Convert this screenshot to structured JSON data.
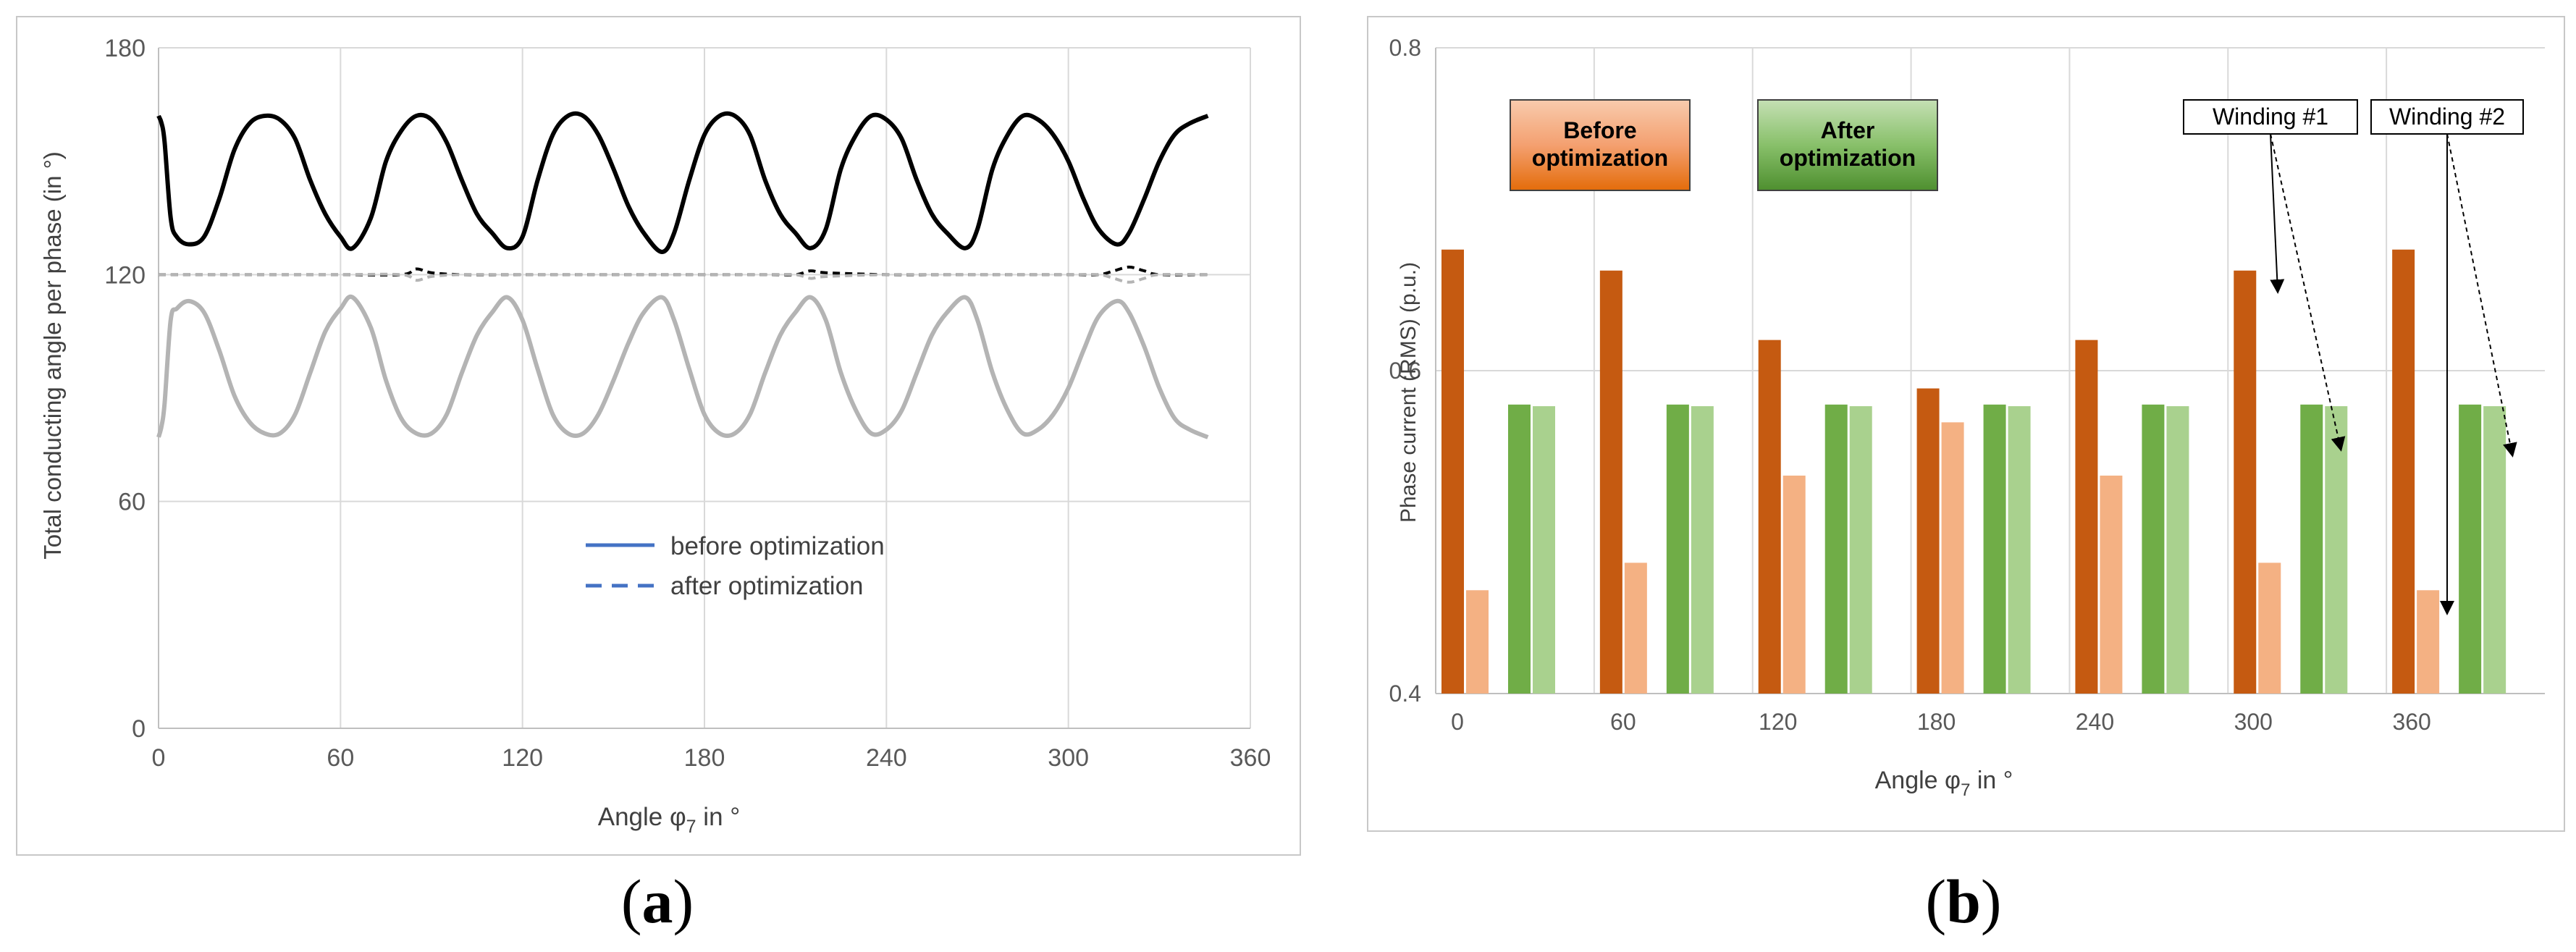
{
  "chart_data": [
    {
      "id": "a",
      "type": "line",
      "ylabel": "Total conducting angle per phase (in °)",
      "xlabel_main": "Angle φ",
      "xlabel_sub": "7",
      "xlabel_unit": " in °",
      "xlim": [
        0,
        360
      ],
      "ylim": [
        0,
        180
      ],
      "x_ticks": [
        "0",
        "60",
        "120",
        "180",
        "240",
        "300",
        "360"
      ],
      "y_ticks": [
        "0",
        "60",
        "120",
        "180"
      ],
      "grid": true,
      "legend": [
        {
          "label": "before optimization",
          "style": "solid",
          "color": "#4472c4"
        },
        {
          "label": "after optimization",
          "style": "dashed",
          "color": "#4472c4"
        }
      ],
      "series": [
        {
          "name": "before optimization (winding #1)",
          "color": "#000000",
          "style": "solid",
          "x": [
            0,
            1,
            2,
            4,
            6,
            10,
            15,
            20,
            25,
            30,
            35,
            40,
            45,
            50,
            55,
            60,
            64,
            70,
            75,
            80,
            85,
            90,
            95,
            100,
            105,
            110,
            115,
            120,
            125,
            130,
            135,
            140,
            145,
            150,
            155,
            160,
            166,
            170,
            175,
            180,
            185,
            190,
            195,
            200,
            205,
            210,
            215,
            220,
            225,
            230,
            235,
            240,
            245,
            250,
            255,
            260,
            266,
            270,
            275,
            280,
            285,
            290,
            295,
            300,
            305,
            310,
            316,
            320,
            325,
            330,
            335,
            340,
            346
          ],
          "y": [
            162,
            160,
            155,
            135,
            130,
            128,
            130,
            140,
            153,
            160,
            162,
            161,
            156,
            145,
            136,
            130,
            127,
            135,
            150,
            158,
            162,
            161,
            155,
            145,
            136,
            131,
            127,
            130,
            145,
            157,
            162,
            162,
            157,
            148,
            138,
            131,
            126,
            131,
            145,
            157,
            162,
            162,
            157,
            145,
            136,
            131,
            127,
            132,
            148,
            157,
            162,
            161,
            156,
            145,
            136,
            131,
            127,
            132,
            148,
            157,
            162,
            161,
            157,
            150,
            140,
            132,
            128,
            131,
            140,
            150,
            157,
            160,
            162
          ]
        },
        {
          "name": "after optimization (winding #1)",
          "color": "#000000",
          "style": "dashed",
          "x": [
            0,
            20,
            40,
            60,
            80,
            85,
            90,
            100,
            120,
            140,
            160,
            180,
            200,
            210,
            215,
            220,
            240,
            260,
            280,
            300,
            310,
            315,
            320,
            325,
            330,
            346
          ],
          "y": [
            120,
            120,
            120,
            120,
            120,
            121.5,
            120.5,
            120,
            120,
            120,
            120,
            120,
            120,
            120,
            121,
            120.5,
            120,
            120,
            120,
            120,
            120,
            121,
            122,
            121,
            120,
            120
          ]
        },
        {
          "name": "after optimization (winding #2)",
          "color": "#b4b4b4",
          "style": "dashed",
          "x": [
            0,
            20,
            40,
            60,
            80,
            85,
            90,
            100,
            120,
            140,
            160,
            180,
            200,
            210,
            215,
            220,
            240,
            260,
            280,
            300,
            310,
            315,
            320,
            325,
            330,
            346
          ],
          "y": [
            120,
            120,
            120,
            120,
            120,
            118.5,
            119.5,
            120,
            120,
            120,
            120,
            120,
            120,
            120,
            119,
            119.5,
            120,
            120,
            120,
            120,
            120,
            119,
            118,
            119,
            120,
            120
          ]
        },
        {
          "name": "before optimization (winding #2)",
          "color": "#b4b4b4",
          "style": "solid",
          "x": [
            0,
            1,
            2,
            4,
            6,
            10,
            15,
            20,
            25,
            30,
            35,
            40,
            45,
            50,
            55,
            60,
            64,
            70,
            75,
            80,
            85,
            90,
            95,
            100,
            105,
            110,
            115,
            120,
            125,
            130,
            135,
            140,
            145,
            150,
            155,
            160,
            166,
            170,
            175,
            180,
            185,
            190,
            195,
            200,
            205,
            210,
            215,
            220,
            225,
            230,
            235,
            240,
            245,
            250,
            255,
            260,
            266,
            270,
            275,
            280,
            285,
            290,
            295,
            300,
            305,
            310,
            316,
            320,
            325,
            330,
            335,
            340,
            346
          ],
          "y": [
            77,
            80,
            86,
            108,
            111,
            113,
            110,
            100,
            88,
            81,
            78,
            78,
            83,
            94,
            105,
            111,
            114,
            106,
            92,
            82,
            78,
            78,
            83,
            94,
            104,
            110,
            114,
            108,
            95,
            83,
            78,
            78,
            83,
            92,
            102,
            110,
            114,
            108,
            95,
            83,
            78,
            78,
            83,
            94,
            104,
            110,
            114,
            108,
            94,
            84,
            78,
            79,
            84,
            94,
            104,
            110,
            114,
            108,
            94,
            84,
            78,
            79,
            83,
            90,
            100,
            109,
            113,
            110,
            101,
            90,
            82,
            79,
            77
          ]
        }
      ]
    },
    {
      "id": "b",
      "type": "bar",
      "ylabel": "Phase current (RMS) (p.u.)",
      "xlabel_main": "Angle φ",
      "xlabel_sub": "7",
      "xlabel_unit": " in °",
      "ylim": [
        0.4,
        0.8
      ],
      "y_ticks": [
        "0.4",
        "0.6",
        "0.8"
      ],
      "grid": true,
      "categories": [
        "0",
        "60",
        "120",
        "180",
        "240",
        "300",
        "360"
      ],
      "series": [
        {
          "name": "Before optimization – Winding #1",
          "color": "#c55a11",
          "values": [
            0.675,
            0.662,
            0.619,
            0.589,
            0.619,
            0.662,
            0.675
          ]
        },
        {
          "name": "Before optimization – Winding #2",
          "color": "#f4b183",
          "values": [
            0.464,
            0.481,
            0.535,
            0.568,
            0.535,
            0.481,
            0.464
          ]
        },
        {
          "name": "After optimization – Winding #1",
          "color": "#70ad47",
          "values": [
            0.579,
            0.579,
            0.579,
            0.579,
            0.579,
            0.579,
            0.579
          ]
        },
        {
          "name": "After optimization – Winding #2",
          "color": "#a9d18e",
          "values": [
            0.578,
            0.578,
            0.578,
            0.578,
            0.578,
            0.578,
            0.578
          ]
        }
      ],
      "annotations": {
        "before_line1": "Before",
        "before_line2": "optimization",
        "after_line1": "After",
        "after_line2": "optimization",
        "winding1": "Winding #1",
        "winding2": "Winding #2"
      }
    }
  ],
  "captions": {
    "a": "a",
    "b": "b"
  }
}
